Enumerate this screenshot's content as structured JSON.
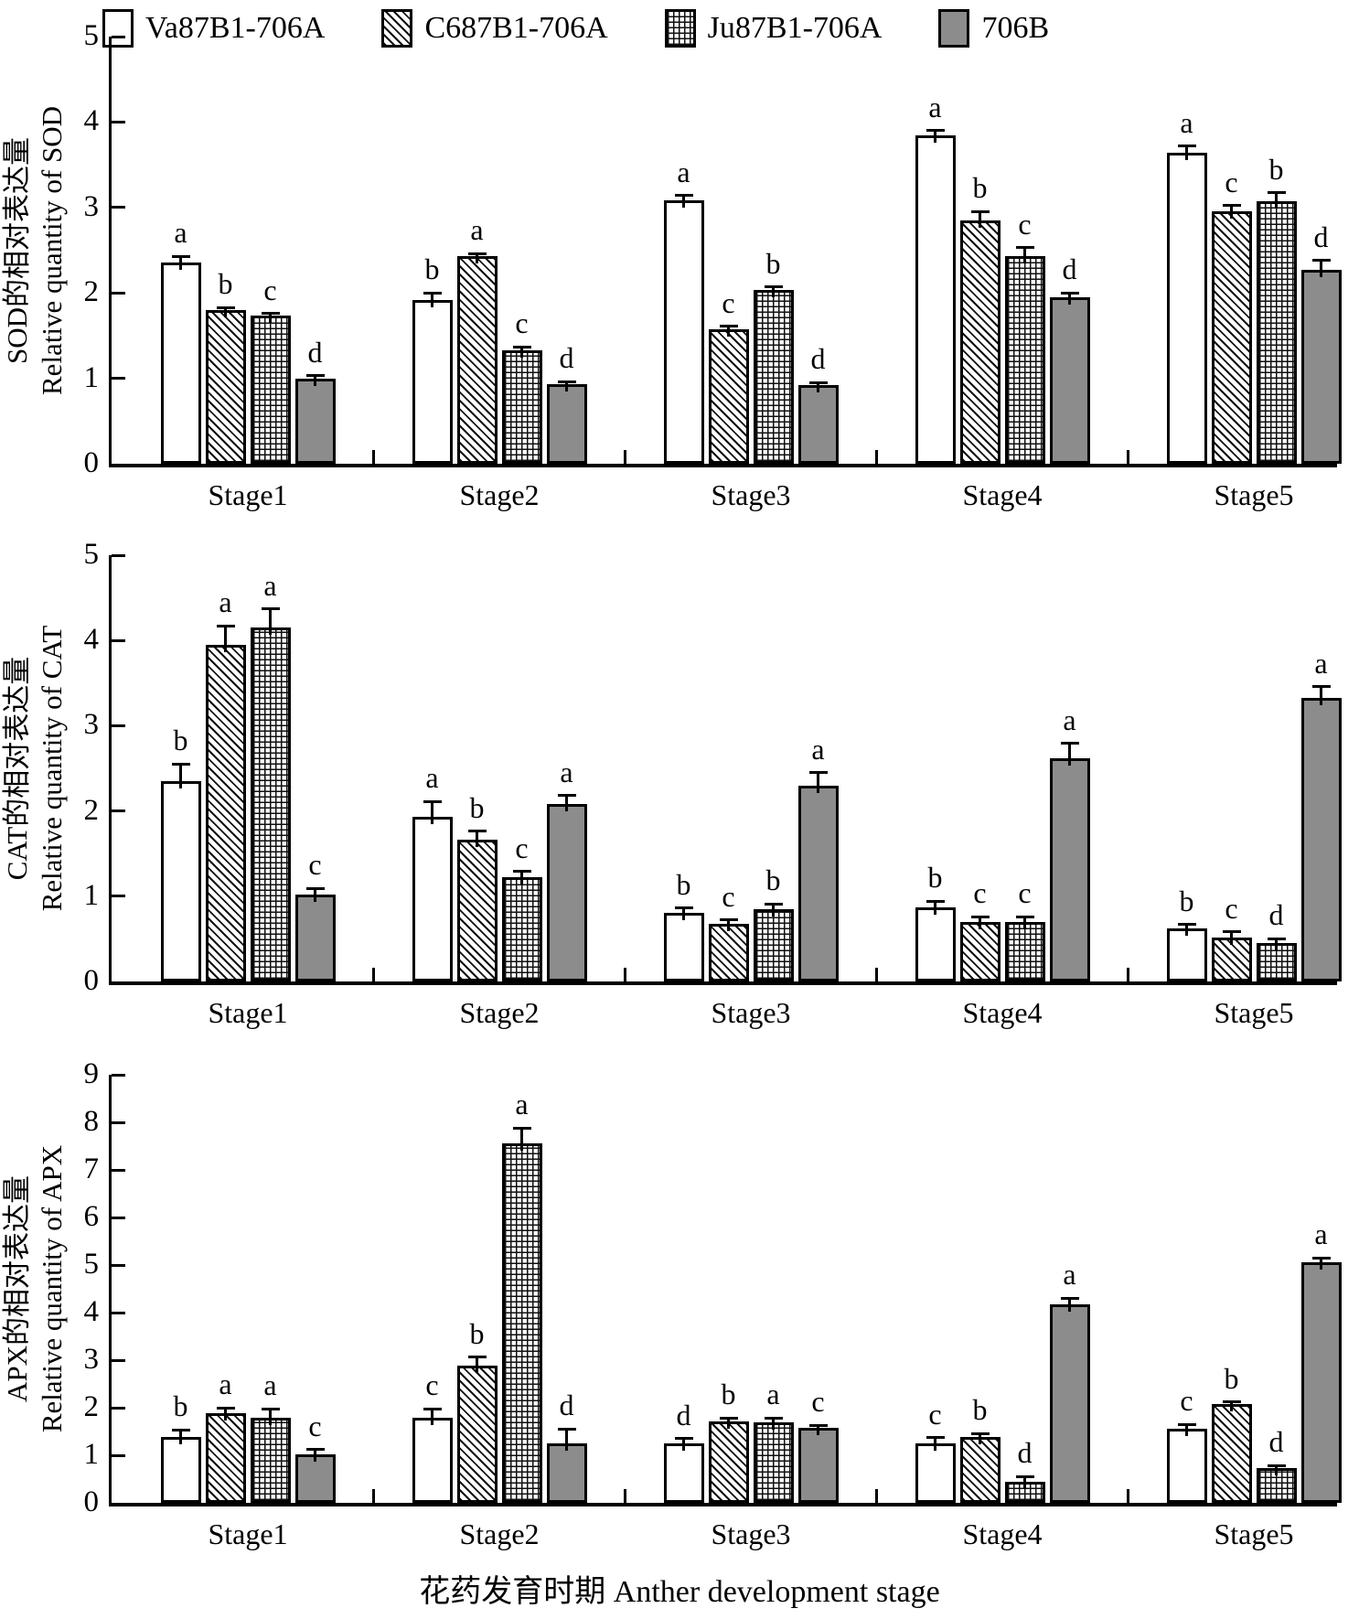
{
  "legend": [
    {
      "label": "Va87B1-706A",
      "pattern": "plain"
    },
    {
      "label": "C687B1-706A",
      "pattern": "diagonal"
    },
    {
      "label": "Ju87B1-706A",
      "pattern": "grid"
    },
    {
      "label": "706B",
      "pattern": "solid"
    }
  ],
  "colors": {
    "ink": "#000000",
    "solid_gray": "#8c8c8c",
    "background": "#ffffff"
  },
  "x_axis_title": "花药发育时期 Anther development stage",
  "stages": [
    "Stage1",
    "Stage2",
    "Stage3",
    "Stage4",
    "Stage5"
  ],
  "chart_data": [
    {
      "type": "bar",
      "ylabel_zh": "SOD的相对表达量",
      "ylabel_en": "Relative quantity of SOD",
      "ylim": [
        0,
        5
      ],
      "yticks": [
        0,
        1,
        2,
        3,
        4,
        5
      ],
      "grid": false,
      "legend_position": "top",
      "categories": [
        "Stage1",
        "Stage2",
        "Stage3",
        "Stage4",
        "Stage5"
      ],
      "series": [
        {
          "name": "Va87B1-706A",
          "pattern": "plain",
          "values": [
            2.36,
            1.92,
            3.08,
            3.84,
            3.64
          ],
          "errors": [
            0.07,
            0.08,
            0.06,
            0.06,
            0.08
          ],
          "letters": [
            "a",
            "b",
            "a",
            "a",
            "a"
          ]
        },
        {
          "name": "C687B1-706A",
          "pattern": "diagonal",
          "values": [
            1.8,
            2.43,
            1.57,
            2.85,
            2.95
          ],
          "errors": [
            0.03,
            0.03,
            0.04,
            0.1,
            0.07
          ],
          "letters": [
            "b",
            "a",
            "c",
            "b",
            "c"
          ]
        },
        {
          "name": "Ju87B1-706A",
          "pattern": "grid",
          "values": [
            1.73,
            1.33,
            2.03,
            2.43,
            3.07
          ],
          "errors": [
            0.03,
            0.04,
            0.04,
            0.1,
            0.1
          ],
          "letters": [
            "c",
            "c",
            "b",
            "c",
            "b"
          ]
        },
        {
          "name": "706B",
          "pattern": "solid",
          "values": [
            1.0,
            0.93,
            0.92,
            1.95,
            2.27
          ],
          "errors": [
            0.03,
            0.03,
            0.03,
            0.05,
            0.11
          ],
          "letters": [
            "d",
            "d",
            "d",
            "d",
            "d"
          ]
        }
      ]
    },
    {
      "type": "bar",
      "ylabel_zh": "CAT的相对表达量",
      "ylabel_en": "Relative quantity of CAT",
      "ylim": [
        0,
        5
      ],
      "yticks": [
        0,
        1,
        2,
        3,
        4,
        5
      ],
      "grid": false,
      "legend_position": "none",
      "categories": [
        "Stage1",
        "Stage2",
        "Stage3",
        "Stage4",
        "Stage5"
      ],
      "series": [
        {
          "name": "Va87B1-706A",
          "pattern": "plain",
          "values": [
            2.35,
            1.93,
            0.8,
            0.87,
            0.62
          ],
          "errors": [
            0.2,
            0.18,
            0.06,
            0.07,
            0.05
          ],
          "letters": [
            "b",
            "a",
            "b",
            "b",
            "b"
          ]
        },
        {
          "name": "C687B1-706A",
          "pattern": "diagonal",
          "values": [
            3.95,
            1.66,
            0.68,
            0.7,
            0.52
          ],
          "errors": [
            0.22,
            0.1,
            0.04,
            0.06,
            0.06
          ],
          "letters": [
            "a",
            "b",
            "c",
            "c",
            "c"
          ]
        },
        {
          "name": "Ju87B1-706A",
          "pattern": "grid",
          "values": [
            4.15,
            1.22,
            0.85,
            0.7,
            0.45
          ],
          "errors": [
            0.22,
            0.07,
            0.06,
            0.06,
            0.05
          ],
          "letters": [
            "a",
            "c",
            "b",
            "c",
            "d"
          ]
        },
        {
          "name": "706B",
          "pattern": "solid",
          "values": [
            1.02,
            2.08,
            2.3,
            2.62,
            3.33
          ],
          "errors": [
            0.07,
            0.1,
            0.15,
            0.17,
            0.13
          ],
          "letters": [
            "c",
            "a",
            "a",
            "a",
            "a"
          ]
        }
      ]
    },
    {
      "type": "bar",
      "ylabel_zh": "APX的相对表达量",
      "ylabel_en": "Relative quantity of APX",
      "ylim": [
        0,
        9
      ],
      "yticks": [
        0,
        1,
        2,
        3,
        4,
        5,
        6,
        7,
        8,
        9
      ],
      "grid": false,
      "legend_position": "none",
      "categories": [
        "Stage1",
        "Stage2",
        "Stage3",
        "Stage4",
        "Stage5"
      ],
      "series": [
        {
          "name": "Va87B1-706A",
          "pattern": "plain",
          "values": [
            1.38,
            1.78,
            1.25,
            1.25,
            1.55
          ],
          "errors": [
            0.15,
            0.2,
            0.1,
            0.12,
            0.1
          ],
          "letters": [
            "b",
            "c",
            "d",
            "c",
            "c"
          ]
        },
        {
          "name": "C687B1-706A",
          "pattern": "diagonal",
          "values": [
            1.88,
            2.88,
            1.72,
            1.38,
            2.08
          ],
          "errors": [
            0.12,
            0.18,
            0.06,
            0.08,
            0.04
          ],
          "letters": [
            "a",
            "b",
            "b",
            "b",
            "b"
          ]
        },
        {
          "name": "Ju87B1-706A",
          "pattern": "grid",
          "values": [
            1.78,
            7.55,
            1.7,
            0.45,
            0.73
          ],
          "errors": [
            0.2,
            0.33,
            0.08,
            0.1,
            0.05
          ],
          "letters": [
            "a",
            "a",
            "a",
            "d",
            "d"
          ]
        },
        {
          "name": "706B",
          "pattern": "solid",
          "values": [
            1.02,
            1.25,
            1.58,
            4.18,
            5.05
          ],
          "errors": [
            0.1,
            0.3,
            0.05,
            0.12,
            0.1
          ],
          "letters": [
            "c",
            "d",
            "c",
            "a",
            "a"
          ]
        }
      ]
    }
  ]
}
